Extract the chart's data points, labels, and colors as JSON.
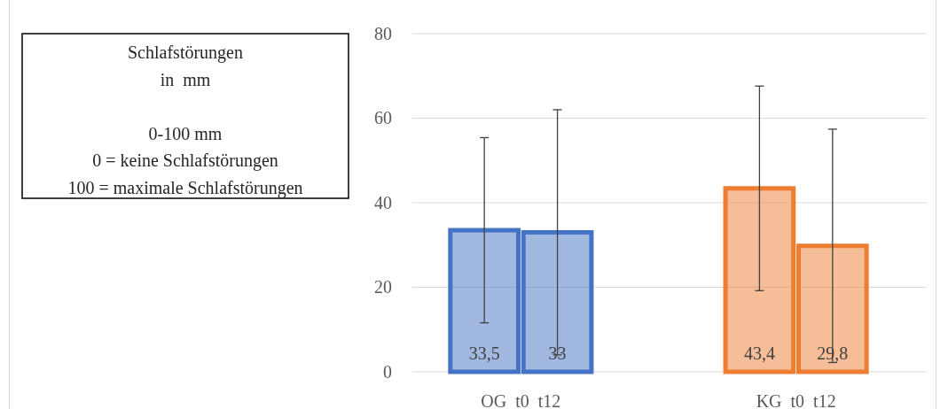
{
  "chart_data": {
    "type": "bar",
    "categories": [
      "OG  t0  t12",
      "KG  t0  t12"
    ],
    "series": [
      {
        "colors": [
          "#4472c4",
          "#ed7d31"
        ],
        "values": [
          33.5,
          43.4
        ],
        "errors": [
          21.9,
          24.2
        ],
        "value_labels": [
          "33,5",
          "43,4"
        ]
      },
      {
        "colors": [
          "#4472c4",
          "#ed7d31"
        ],
        "values": [
          33,
          29.8
        ],
        "errors": [
          29,
          27.6
        ],
        "value_labels": [
          "33",
          "29,8"
        ]
      }
    ],
    "ylim": [
      0,
      80
    ],
    "yticks": [
      0,
      20,
      40,
      60,
      80
    ],
    "grid": "y",
    "annotations": [
      "Schlafstörungen\nin  mm\n\n0-100 mm\n0 = keine Schlafstörungen\n100 = maximale Schlafstörungen"
    ]
  }
}
